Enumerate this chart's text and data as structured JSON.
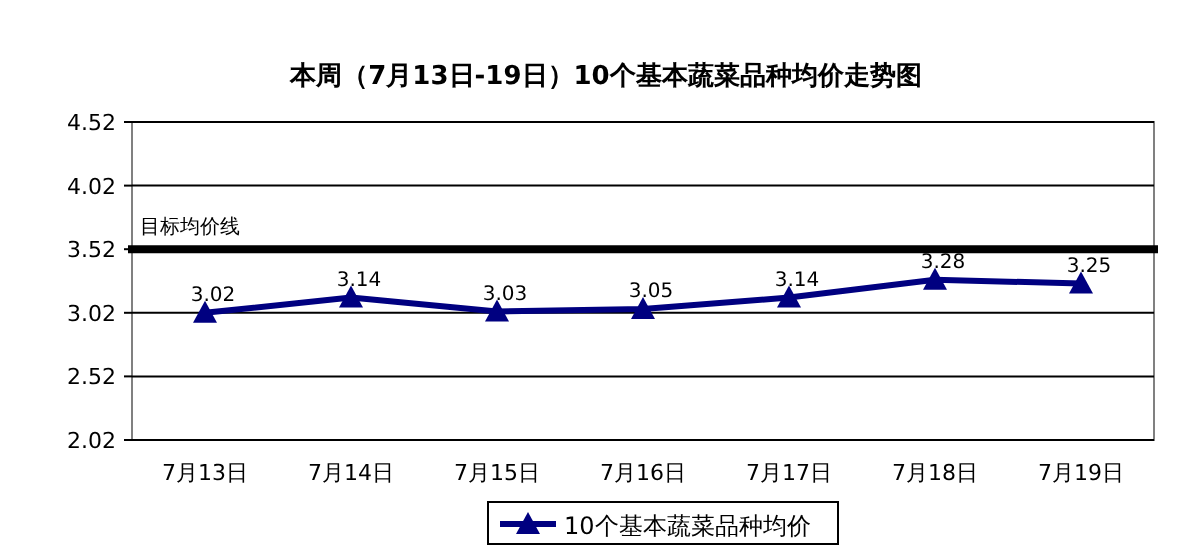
{
  "chart_data": {
    "type": "line",
    "title": "本周（7月13日-19日）10个基本蔬菜品种均价走势图",
    "categories": [
      "7月13日",
      "7月14日",
      "7月15日",
      "7月16日",
      "7月17日",
      "7月18日",
      "7月19日"
    ],
    "series": [
      {
        "name": "10个基本蔬菜品种均价",
        "color": "#000080",
        "values": [
          3.02,
          3.14,
          3.03,
          3.05,
          3.14,
          3.28,
          3.25
        ]
      }
    ],
    "ylim": [
      2.02,
      4.52
    ],
    "yticks": [
      2.02,
      2.52,
      3.02,
      3.52,
      4.02,
      4.52
    ],
    "grid": "y",
    "marker": "triangle",
    "data_labels": true,
    "legend": "bottom",
    "ref_lines": [
      {
        "axis": "y",
        "value": 3.52,
        "label": "目标均价线",
        "color": "#000000"
      }
    ]
  }
}
